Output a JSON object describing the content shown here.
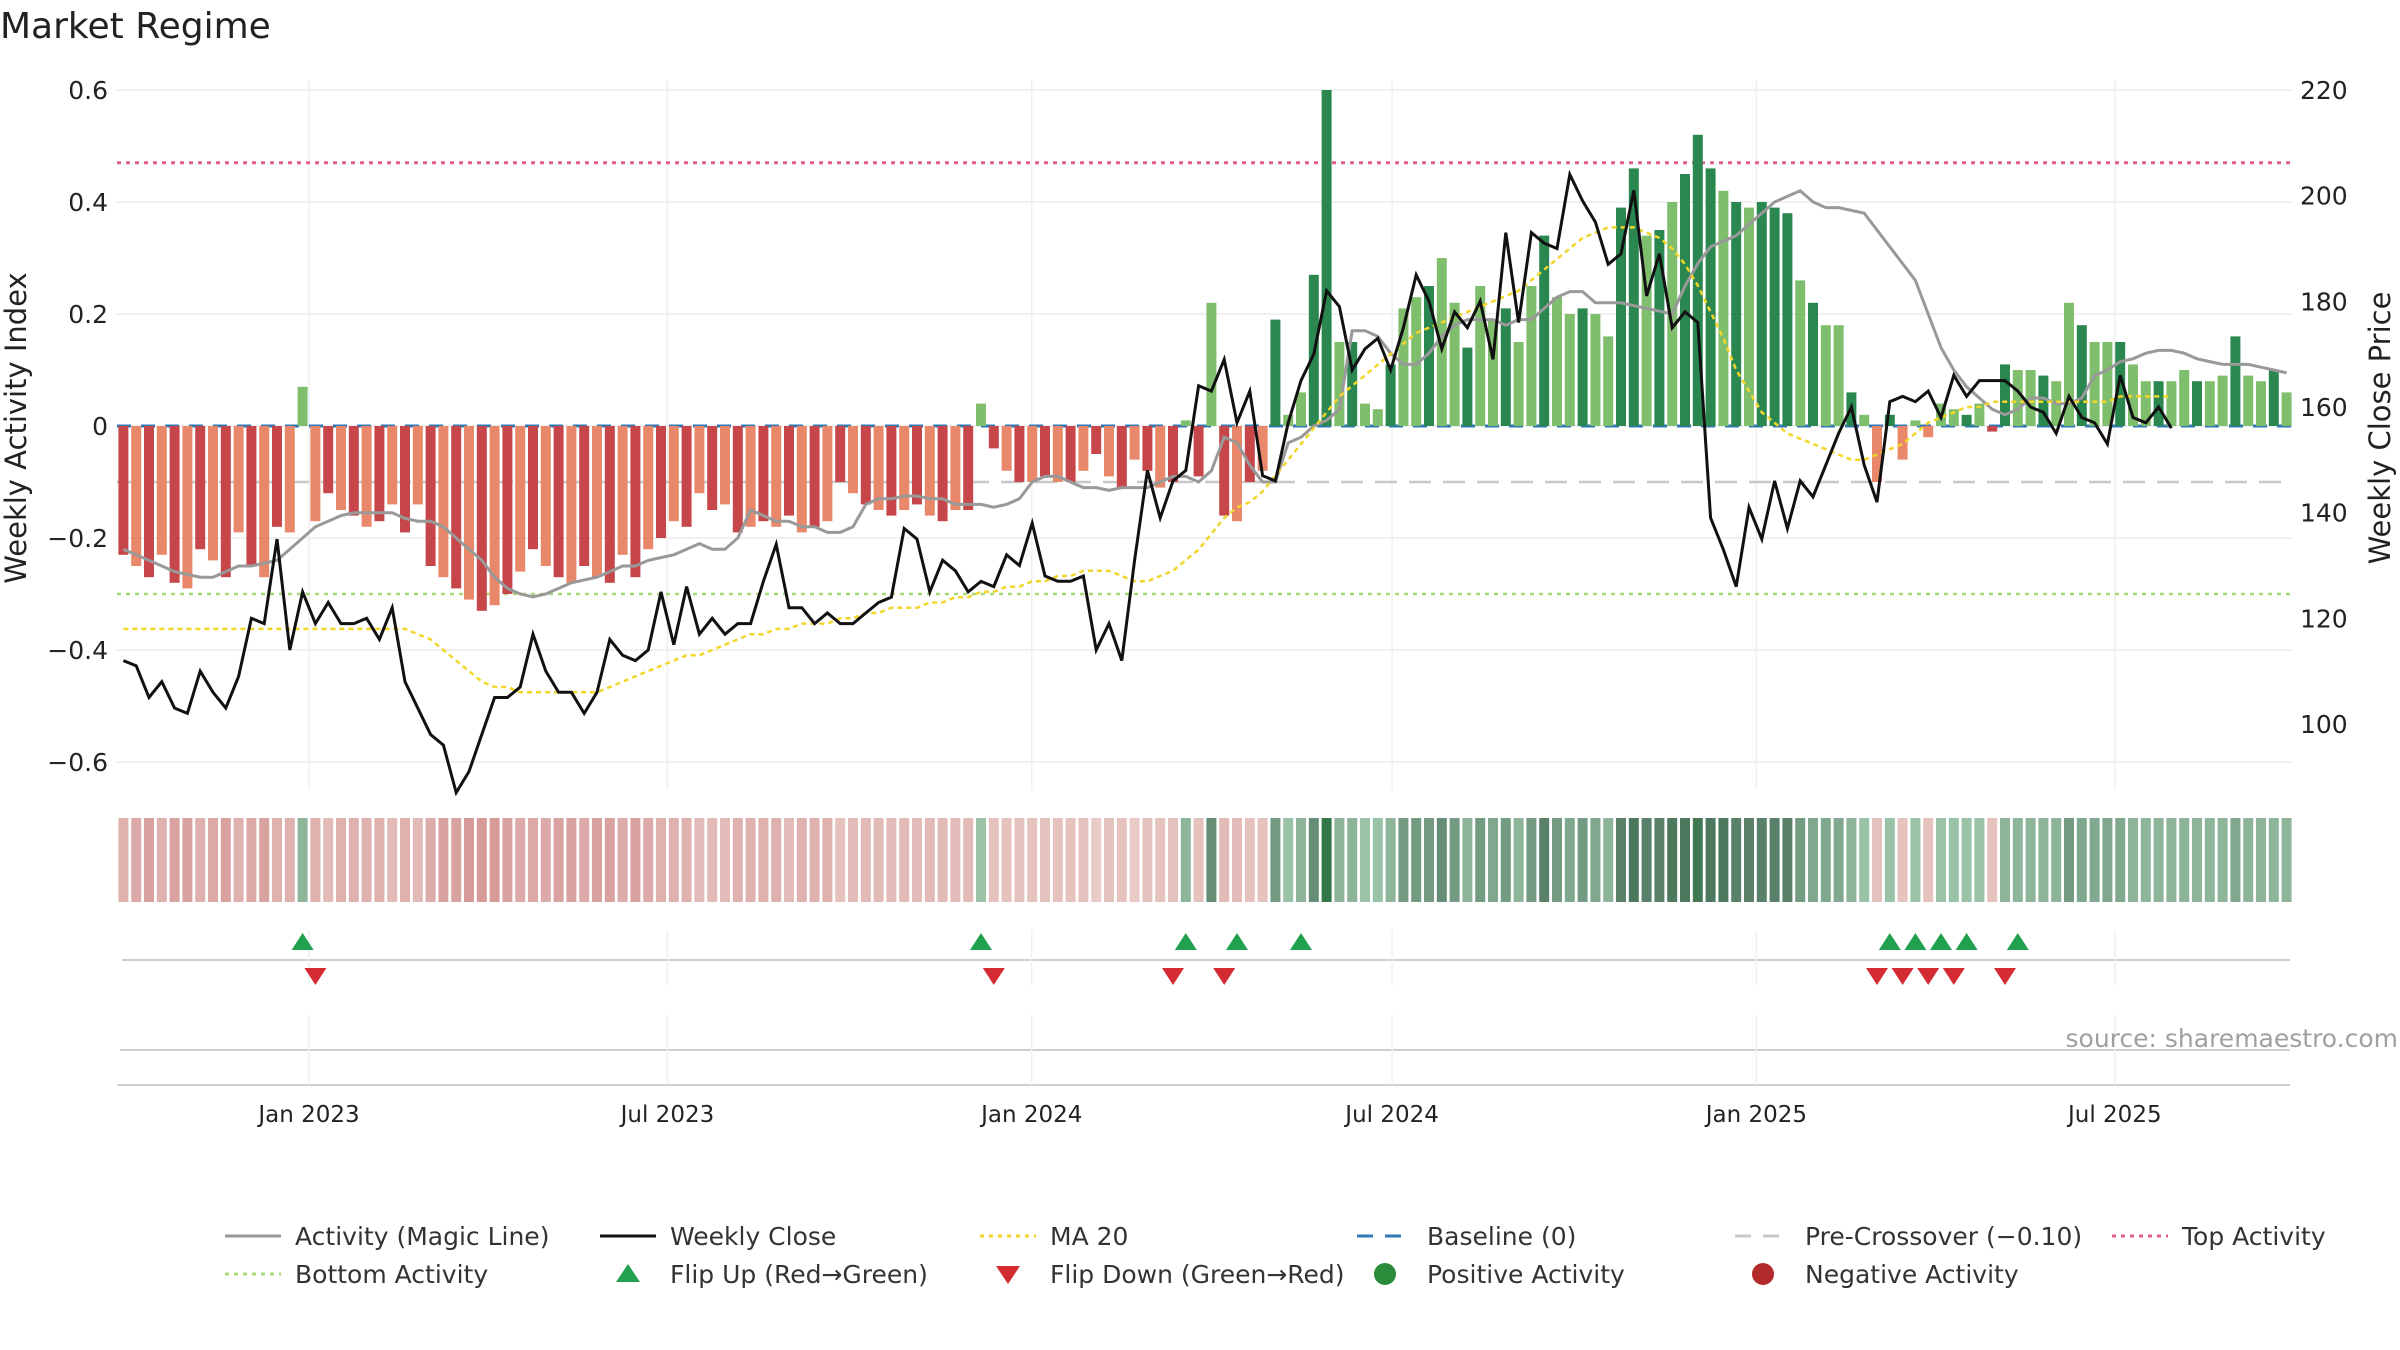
{
  "chart_data": {
    "type": "bar",
    "title": "Market Regime",
    "ylabel": "Weekly Activity Index",
    "y2label": "Weekly Close Price",
    "source": "source: sharemaestro.com",
    "ylim": [
      -0.65,
      0.6
    ],
    "y2lim": [
      87.5,
      220
    ],
    "yticks": [
      0.6,
      0.4,
      0.2,
      0,
      -0.2,
      -0.4,
      -0.6
    ],
    "ytick_labels": [
      "0.6",
      "0.4",
      "0.2",
      "0",
      "−0.2",
      "−0.4",
      "−0.6"
    ],
    "y2ticks": [
      220,
      200,
      180,
      160,
      140,
      120,
      100
    ],
    "y2tick_labels": [
      "220",
      "200",
      "180",
      "160",
      "140",
      "120",
      "100"
    ],
    "x_range": [
      "2022-09-26",
      "2025-09-29"
    ],
    "xticks": [
      {
        "date": "2023-01-01",
        "label": "Jan 2023"
      },
      {
        "date": "2023-07-01",
        "label": "Jul 2023"
      },
      {
        "date": "2024-01-01",
        "label": "Jan 2024"
      },
      {
        "date": "2024-07-01",
        "label": "Jul 2024"
      },
      {
        "date": "2025-01-01",
        "label": "Jan 2025"
      },
      {
        "date": "2025-07-01",
        "label": "Jul 2025"
      }
    ],
    "grid": true,
    "legend_position": "bottom",
    "colors": {
      "neg_dark": "#c6464a",
      "neg_light": "#e8876a",
      "pos_dark": "#2a8750",
      "pos_light": "#7fbe6d",
      "magic_line": "#999999",
      "weekly_close": "#111111",
      "ma20": "#f2d62a",
      "baseline": "#2f78b5",
      "pre_crossover": "#c8c8c8",
      "top_activity": "#e0608c",
      "bottom_activity": "#a8d878",
      "flip_up": "#21a050",
      "flip_down": "#d42a32"
    },
    "reference_lines": {
      "baseline": 0,
      "pre_crossover": -0.1,
      "top_activity": 0.47,
      "bottom_activity": -0.3
    },
    "series": [
      {
        "name": "Activity (Magic Line)",
        "values": [
          -0.22,
          -0.23,
          -0.24,
          -0.25,
          -0.26,
          -0.265,
          -0.27,
          -0.27,
          -0.26,
          -0.25,
          -0.25,
          -0.245,
          -0.24,
          -0.22,
          -0.2,
          -0.18,
          -0.17,
          -0.16,
          -0.155,
          -0.155,
          -0.155,
          -0.155,
          -0.165,
          -0.17,
          -0.17,
          -0.18,
          -0.2,
          -0.22,
          -0.24,
          -0.27,
          -0.29,
          -0.3,
          -0.305,
          -0.3,
          -0.29,
          -0.28,
          -0.275,
          -0.27,
          -0.26,
          -0.25,
          -0.25,
          -0.24,
          -0.235,
          -0.23,
          -0.22,
          -0.21,
          -0.22,
          -0.22,
          -0.2,
          -0.15,
          -0.16,
          -0.17,
          -0.17,
          -0.18,
          -0.18,
          -0.19,
          -0.19,
          -0.18,
          -0.14,
          -0.13,
          -0.13,
          -0.125,
          -0.125,
          -0.13,
          -0.13,
          -0.14,
          -0.14,
          -0.14,
          -0.145,
          -0.14,
          -0.13,
          -0.1,
          -0.09,
          -0.09,
          -0.1,
          -0.11,
          -0.11,
          -0.115,
          -0.11,
          -0.11,
          -0.11,
          -0.1,
          -0.09,
          -0.09,
          -0.1,
          -0.08,
          -0.02,
          -0.03,
          -0.07,
          -0.1,
          -0.1,
          -0.03,
          -0.02,
          0.0,
          0.01,
          0.03,
          0.17,
          0.17,
          0.16,
          0.13,
          0.11,
          0.11,
          0.13,
          0.16,
          0.18,
          0.19,
          0.19,
          0.19,
          0.18,
          0.19,
          0.19,
          0.21,
          0.23,
          0.24,
          0.24,
          0.22,
          0.22,
          0.22,
          0.215,
          0.21,
          0.205,
          0.2,
          0.25,
          0.29,
          0.32,
          0.33,
          0.34,
          0.36,
          0.38,
          0.4,
          0.41,
          0.42,
          0.4,
          0.39,
          0.39,
          0.385,
          0.38,
          0.35,
          0.32,
          0.29,
          0.26,
          0.2,
          0.14,
          0.1,
          0.07,
          0.05,
          0.03,
          0.02,
          0.03,
          0.05,
          0.05,
          0.04,
          0.04,
          0.05,
          0.09,
          0.1,
          0.115,
          0.12,
          0.13,
          0.135,
          0.135,
          0.13,
          0.12,
          0.115,
          0.11,
          0.11,
          0.11,
          0.105,
          0.1,
          0.095
        ]
      },
      {
        "name": "Weekly Close",
        "values": [
          112,
          111,
          105,
          108,
          103,
          102,
          110,
          106,
          103,
          109,
          120,
          119,
          135,
          114,
          125,
          119,
          123,
          119,
          119,
          120,
          116,
          122,
          108,
          103,
          98,
          96,
          87,
          91,
          98,
          105,
          105,
          107,
          117,
          110,
          106,
          106,
          102,
          106,
          116,
          113,
          112,
          114,
          125,
          115,
          126,
          117,
          120,
          117,
          119,
          119,
          127,
          134,
          122,
          122,
          119,
          121,
          119,
          119,
          121,
          123,
          124,
          137,
          135,
          125,
          131,
          129,
          125,
          127,
          126,
          132,
          130,
          138,
          128,
          127,
          127,
          128,
          114,
          119,
          112,
          131,
          148,
          139,
          146,
          148,
          164,
          163,
          169,
          157,
          163,
          147,
          146,
          157,
          165,
          170,
          182,
          179,
          167,
          171,
          173,
          167,
          175,
          185,
          180,
          171,
          178,
          175,
          180,
          169,
          193,
          176,
          193,
          191,
          190,
          204,
          199,
          195,
          187,
          189,
          201,
          181,
          189,
          175,
          178,
          176,
          139,
          133,
          126,
          141,
          135,
          146,
          137,
          146,
          143,
          149,
          155,
          160,
          149,
          142,
          161,
          162,
          161,
          163,
          158,
          166,
          162,
          165,
          165,
          165,
          163,
          160,
          159,
          155,
          162,
          158,
          157,
          153,
          166,
          158,
          157,
          160,
          156
        ]
      },
      {
        "name": "MA 20",
        "values": [
          118,
          118,
          118,
          118,
          118,
          118,
          118,
          118,
          118,
          118,
          118,
          118,
          118,
          118,
          118,
          118,
          118,
          118,
          118,
          118,
          118,
          118,
          118,
          117,
          116,
          114,
          112,
          110,
          108,
          107,
          107,
          106,
          106,
          106,
          106,
          106,
          106,
          106,
          107,
          108,
          109,
          110,
          111,
          112,
          113,
          113,
          114,
          115,
          116,
          117,
          117,
          118,
          118,
          119,
          119,
          119,
          120,
          120,
          121,
          121,
          122,
          122,
          122,
          123,
          123,
          124,
          124,
          125,
          125,
          126,
          126,
          127,
          127,
          128,
          128,
          129,
          129,
          129,
          128,
          127,
          127,
          128,
          129,
          131,
          133,
          136,
          139,
          141,
          142,
          144,
          147,
          150,
          153,
          156,
          159,
          162,
          164,
          166,
          168,
          170,
          172,
          174,
          175,
          176,
          177,
          178,
          179,
          180,
          181,
          182,
          184,
          186,
          188,
          190,
          192,
          193,
          194,
          194,
          194,
          193,
          192,
          190,
          187,
          183,
          178,
          173,
          167,
          163,
          159,
          157,
          155,
          154,
          153,
          152,
          151,
          150,
          150,
          151,
          152,
          153,
          155,
          157,
          158,
          159,
          160,
          160,
          161,
          161,
          161,
          161,
          161,
          161,
          161,
          161,
          161,
          161,
          162,
          162,
          162,
          162,
          162
        ]
      },
      {
        "name": "Activity",
        "values": [
          -0.23,
          -0.25,
          -0.27,
          -0.23,
          -0.28,
          -0.29,
          -0.22,
          -0.24,
          -0.27,
          -0.19,
          -0.25,
          -0.27,
          -0.18,
          -0.19,
          0.07,
          -0.17,
          -0.12,
          -0.15,
          -0.16,
          -0.18,
          -0.17,
          -0.14,
          -0.19,
          -0.14,
          -0.25,
          -0.27,
          -0.29,
          -0.31,
          -0.33,
          -0.32,
          -0.3,
          -0.26,
          -0.22,
          -0.25,
          -0.27,
          -0.28,
          -0.25,
          -0.27,
          -0.28,
          -0.23,
          -0.27,
          -0.22,
          -0.2,
          -0.17,
          -0.18,
          -0.12,
          -0.15,
          -0.14,
          -0.19,
          -0.18,
          -0.17,
          -0.18,
          -0.16,
          -0.19,
          -0.18,
          -0.17,
          -0.1,
          -0.12,
          -0.14,
          -0.15,
          -0.16,
          -0.15,
          -0.14,
          -0.16,
          -0.17,
          -0.15,
          -0.15,
          0.04,
          -0.04,
          -0.08,
          -0.1,
          -0.1,
          -0.09,
          -0.1,
          -0.1,
          -0.08,
          -0.05,
          -0.09,
          -0.11,
          -0.06,
          -0.08,
          -0.11,
          -0.1,
          0.01,
          -0.09,
          0.22,
          -0.16,
          -0.17,
          -0.1,
          -0.08,
          0.19,
          0.02,
          0.06,
          0.27,
          0.6,
          0.15,
          0.15,
          0.04,
          0.03,
          0.11,
          0.21,
          0.23,
          0.25,
          0.3,
          0.22,
          0.14,
          0.25,
          0.19,
          0.21,
          0.15,
          0.25,
          0.34,
          0.23,
          0.2,
          0.21,
          0.2,
          0.16,
          0.39,
          0.46,
          0.34,
          0.35,
          0.4,
          0.45,
          0.52,
          0.46,
          0.42,
          0.4,
          0.39,
          0.4,
          0.39,
          0.38,
          0.26,
          0.22,
          0.18,
          0.18,
          0.06,
          0.02,
          -0.1,
          0.02,
          -0.06,
          0.01,
          -0.02,
          0.04,
          0.03,
          0.02,
          0.04,
          -0.01,
          0.11,
          0.1,
          0.1,
          0.09,
          0.08,
          0.22,
          0.18,
          0.15,
          0.15,
          0.15,
          0.11,
          0.08,
          0.08,
          0.08,
          0.1,
          0.08,
          0.08,
          0.09,
          0.16,
          0.09,
          0.08,
          0.1,
          0.06
        ]
      }
    ],
    "regime_strip": [
      -0.4,
      -0.5,
      -0.6,
      -0.4,
      -0.6,
      -0.6,
      -0.4,
      -0.5,
      -0.6,
      -0.4,
      -0.5,
      -0.6,
      -0.4,
      -0.4,
      0.3,
      -0.4,
      -0.3,
      -0.4,
      -0.4,
      -0.4,
      -0.4,
      -0.3,
      -0.4,
      -0.3,
      -0.5,
      -0.6,
      -0.6,
      -0.7,
      -0.7,
      -0.7,
      -0.6,
      -0.5,
      -0.5,
      -0.5,
      -0.6,
      -0.6,
      -0.5,
      -0.6,
      -0.6,
      -0.5,
      -0.6,
      -0.5,
      -0.4,
      -0.4,
      -0.4,
      -0.3,
      -0.3,
      -0.3,
      -0.4,
      -0.4,
      -0.4,
      -0.4,
      -0.3,
      -0.4,
      -0.4,
      -0.4,
      -0.2,
      -0.3,
      -0.3,
      -0.3,
      -0.3,
      -0.3,
      -0.3,
      -0.3,
      -0.3,
      -0.3,
      -0.3,
      0.2,
      -0.2,
      -0.2,
      -0.2,
      -0.2,
      -0.2,
      -0.2,
      -0.2,
      -0.2,
      -0.1,
      -0.2,
      -0.2,
      -0.1,
      -0.2,
      -0.2,
      -0.2,
      0.3,
      -0.2,
      0.6,
      -0.3,
      -0.3,
      -0.2,
      -0.2,
      0.5,
      0.2,
      0.3,
      0.6,
      1.0,
      0.3,
      0.3,
      0.2,
      0.2,
      0.3,
      0.5,
      0.5,
      0.5,
      0.6,
      0.5,
      0.3,
      0.5,
      0.4,
      0.5,
      0.3,
      0.5,
      0.7,
      0.5,
      0.4,
      0.5,
      0.4,
      0.3,
      0.7,
      0.8,
      0.7,
      0.7,
      0.8,
      0.8,
      0.9,
      0.8,
      0.8,
      0.7,
      0.7,
      0.7,
      0.7,
      0.7,
      0.5,
      0.4,
      0.4,
      0.4,
      0.3,
      0.2,
      -0.2,
      0.2,
      -0.2,
      0.2,
      -0.2,
      0.2,
      0.2,
      0.2,
      0.2,
      -0.2,
      0.3,
      0.3,
      0.3,
      0.3,
      0.3,
      0.5,
      0.4,
      0.4,
      0.4,
      0.4,
      0.3,
      0.3,
      0.3,
      0.3,
      0.3,
      0.3,
      0.3,
      0.3,
      0.4,
      0.3,
      0.3,
      0.3,
      0.3
    ],
    "flip_up_weeks": [
      14,
      67,
      83,
      87,
      92,
      138,
      140,
      142,
      144,
      148
    ],
    "flip_down_weeks": [
      15,
      68,
      82,
      86,
      137,
      139,
      141,
      143,
      147
    ],
    "legend": [
      {
        "label": "Activity (Magic Line)",
        "kind": "line",
        "color": "#999999",
        "dash": "solid"
      },
      {
        "label": "Weekly Close",
        "kind": "line",
        "color": "#111111",
        "dash": "solid"
      },
      {
        "label": "MA 20",
        "kind": "line",
        "color": "#f2d62a",
        "dash": "dot"
      },
      {
        "label": "Baseline (0)",
        "kind": "line",
        "color": "#2f78b5",
        "dash": "dash"
      },
      {
        "label": "Pre-Crossover (−0.10)",
        "kind": "line",
        "color": "#c8c8c8",
        "dash": "dash"
      },
      {
        "label": "Top Activity",
        "kind": "line",
        "color": "#e0608c",
        "dash": "dot"
      },
      {
        "label": "Bottom Activity",
        "kind": "line",
        "color": "#a8d878",
        "dash": "dot"
      },
      {
        "label": "Flip Up (Red→Green)",
        "kind": "triangle-up",
        "color": "#21a050"
      },
      {
        "label": "Flip Down (Green→Red)",
        "kind": "triangle-down",
        "color": "#d42a32"
      },
      {
        "label": "Positive Activity",
        "kind": "dot",
        "color": "#2a8c3a"
      },
      {
        "label": "Negative Activity",
        "kind": "dot",
        "color": "#b22a2a"
      }
    ]
  }
}
